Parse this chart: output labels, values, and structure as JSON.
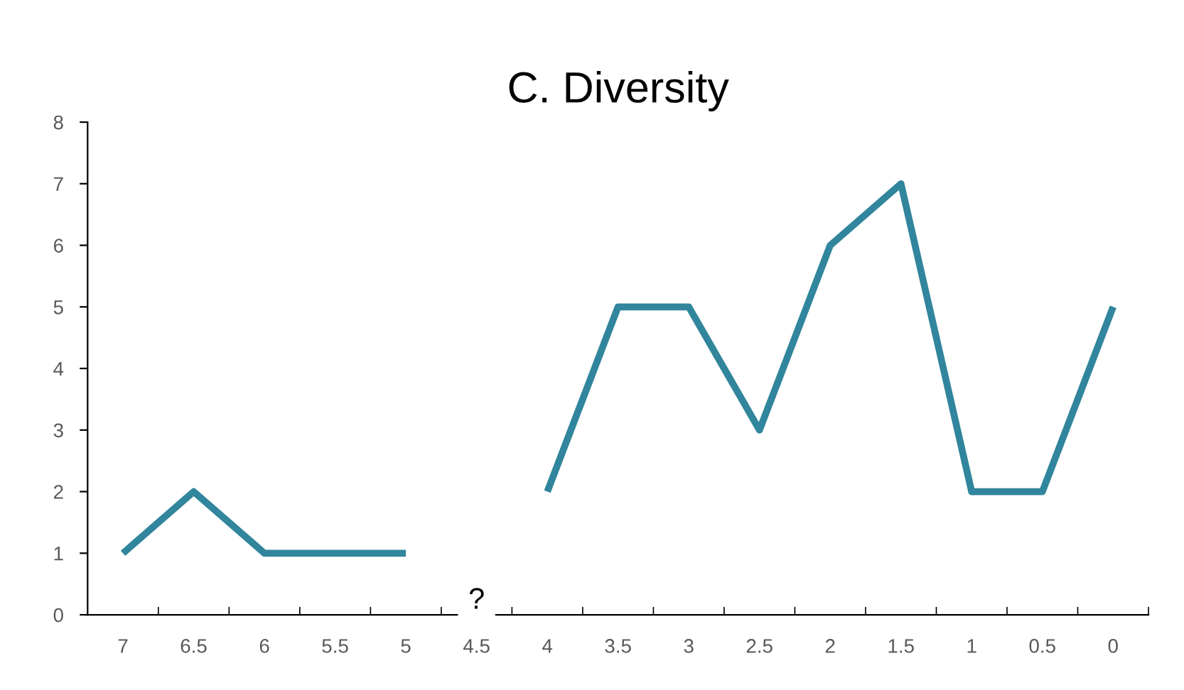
{
  "chart_data": {
    "type": "line",
    "title": "C. Diversity",
    "categories": [
      "7",
      "6.5",
      "6",
      "5.5",
      "5",
      "4.5",
      "4",
      "3.5",
      "3",
      "2.5",
      "2",
      "1.5",
      "1",
      "0.5",
      "0"
    ],
    "series": [
      {
        "color": "#31859c",
        "values": [
          1,
          2,
          1,
          1,
          1,
          null,
          2,
          5,
          5,
          3,
          6,
          7,
          2,
          2,
          5
        ]
      }
    ],
    "ylim": [
      0,
      8
    ],
    "yticks": [
      0,
      1,
      2,
      3,
      4,
      5,
      6,
      7,
      8
    ],
    "grid": false,
    "legend": false,
    "marker": "none",
    "line_style": "solid",
    "annotations": [
      "?"
    ]
  }
}
